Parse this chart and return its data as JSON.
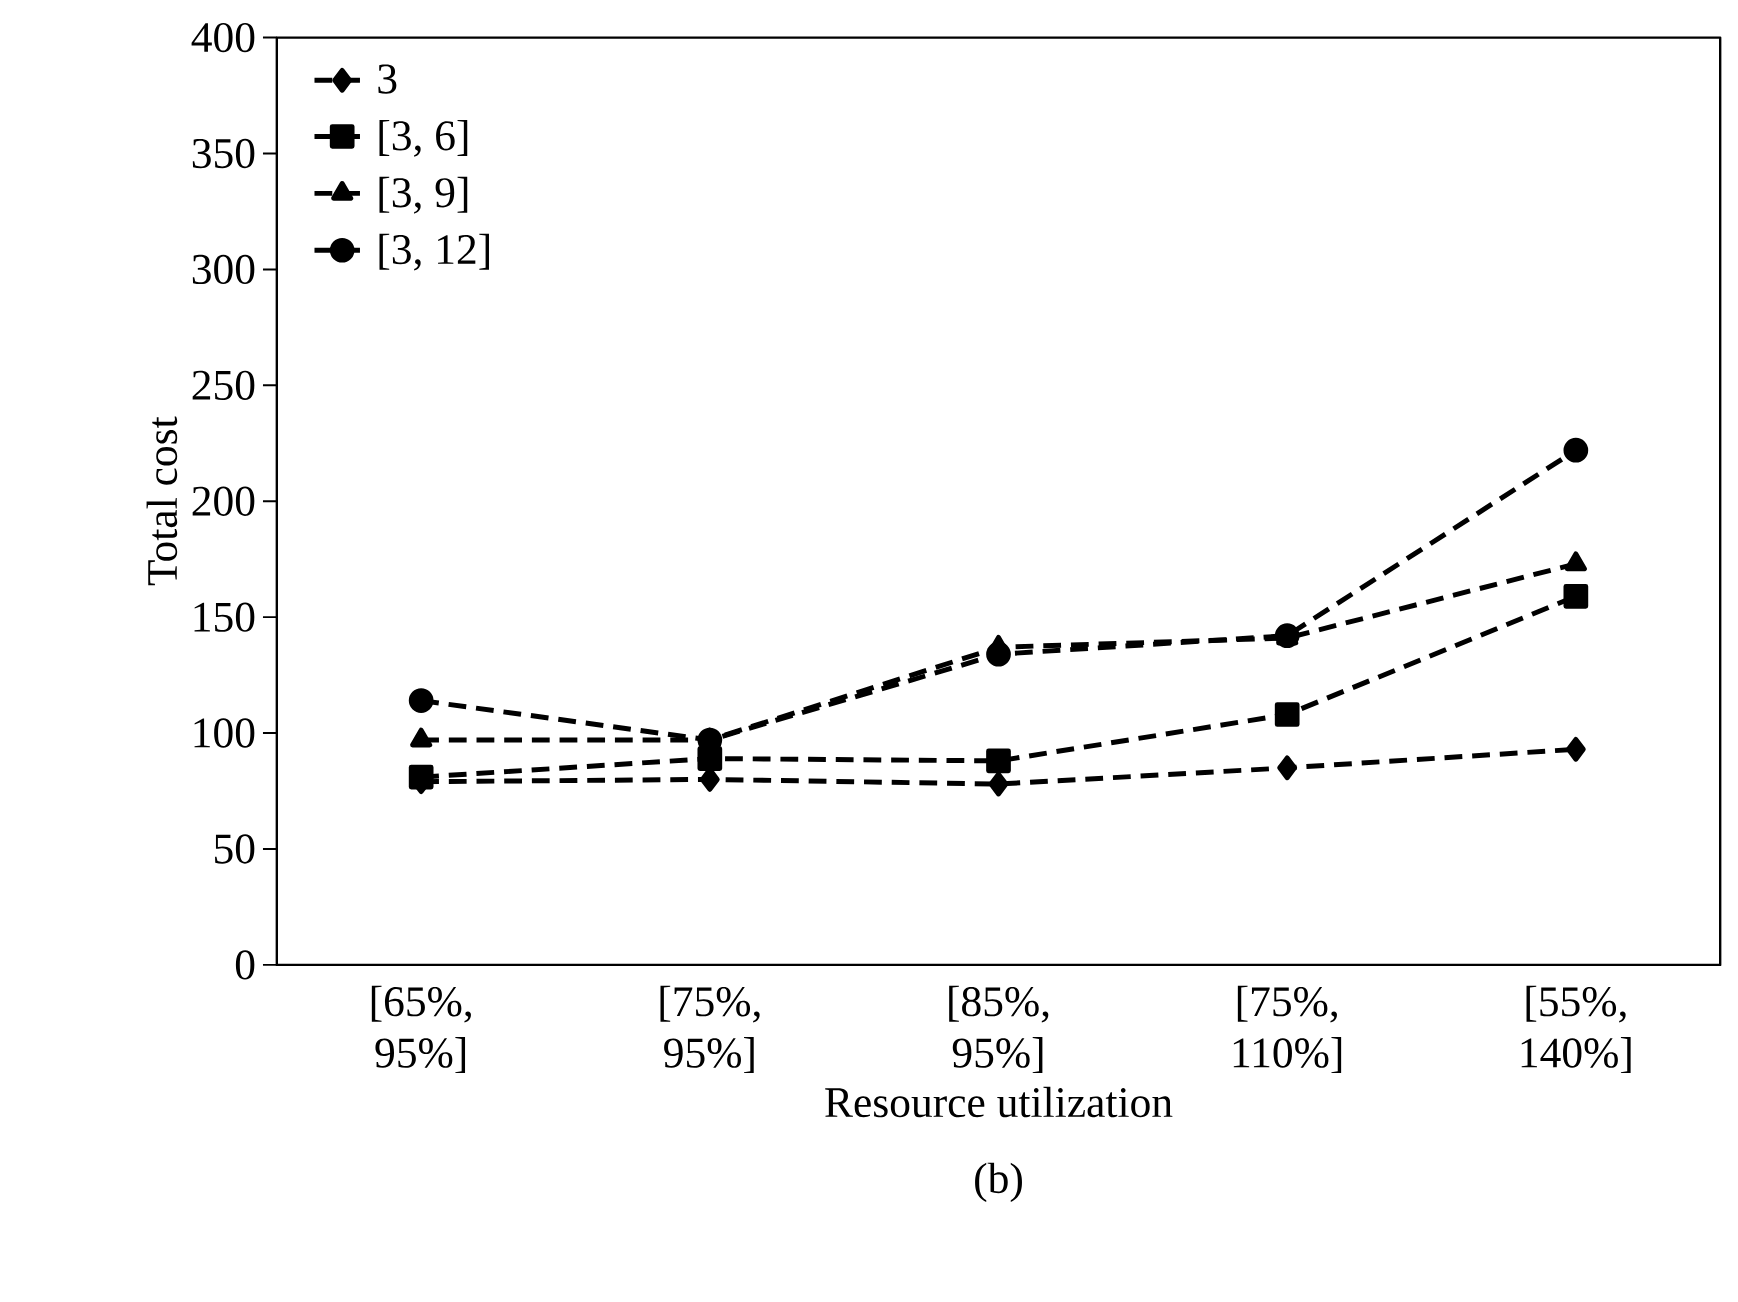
{
  "chart_data": {
    "type": "line",
    "xlabel": "Resource utilization",
    "ylabel": "Total cost",
    "categories": [
      "[65%, 95%]",
      "[75%, 95%]",
      "[85%, 95%]",
      "[75%, 110%]",
      "[55%, 140%]"
    ],
    "series": [
      {
        "name": "3",
        "color": "#000000",
        "marker": "diamond",
        "values": [
          79,
          80,
          78,
          85,
          93
        ]
      },
      {
        "name": "[3, 6]",
        "color": "#000000",
        "marker": "square",
        "values": [
          81,
          89,
          88,
          108,
          159
        ]
      },
      {
        "name": "[3, 9]",
        "color": "#000000",
        "marker": "triangle",
        "values": [
          97,
          97,
          137,
          141,
          173
        ]
      },
      {
        "name": "[3, 12]",
        "color": "#000000",
        "marker": "circle",
        "values": [
          114,
          97,
          134,
          142,
          222
        ]
      }
    ],
    "ylim": [
      0,
      400
    ],
    "yticks": [
      0,
      50,
      100,
      150,
      200,
      250,
      300,
      350,
      400
    ],
    "line_style": "dashed",
    "legend": "top left",
    "grid": false,
    "annotations": [
      "(b)"
    ]
  }
}
